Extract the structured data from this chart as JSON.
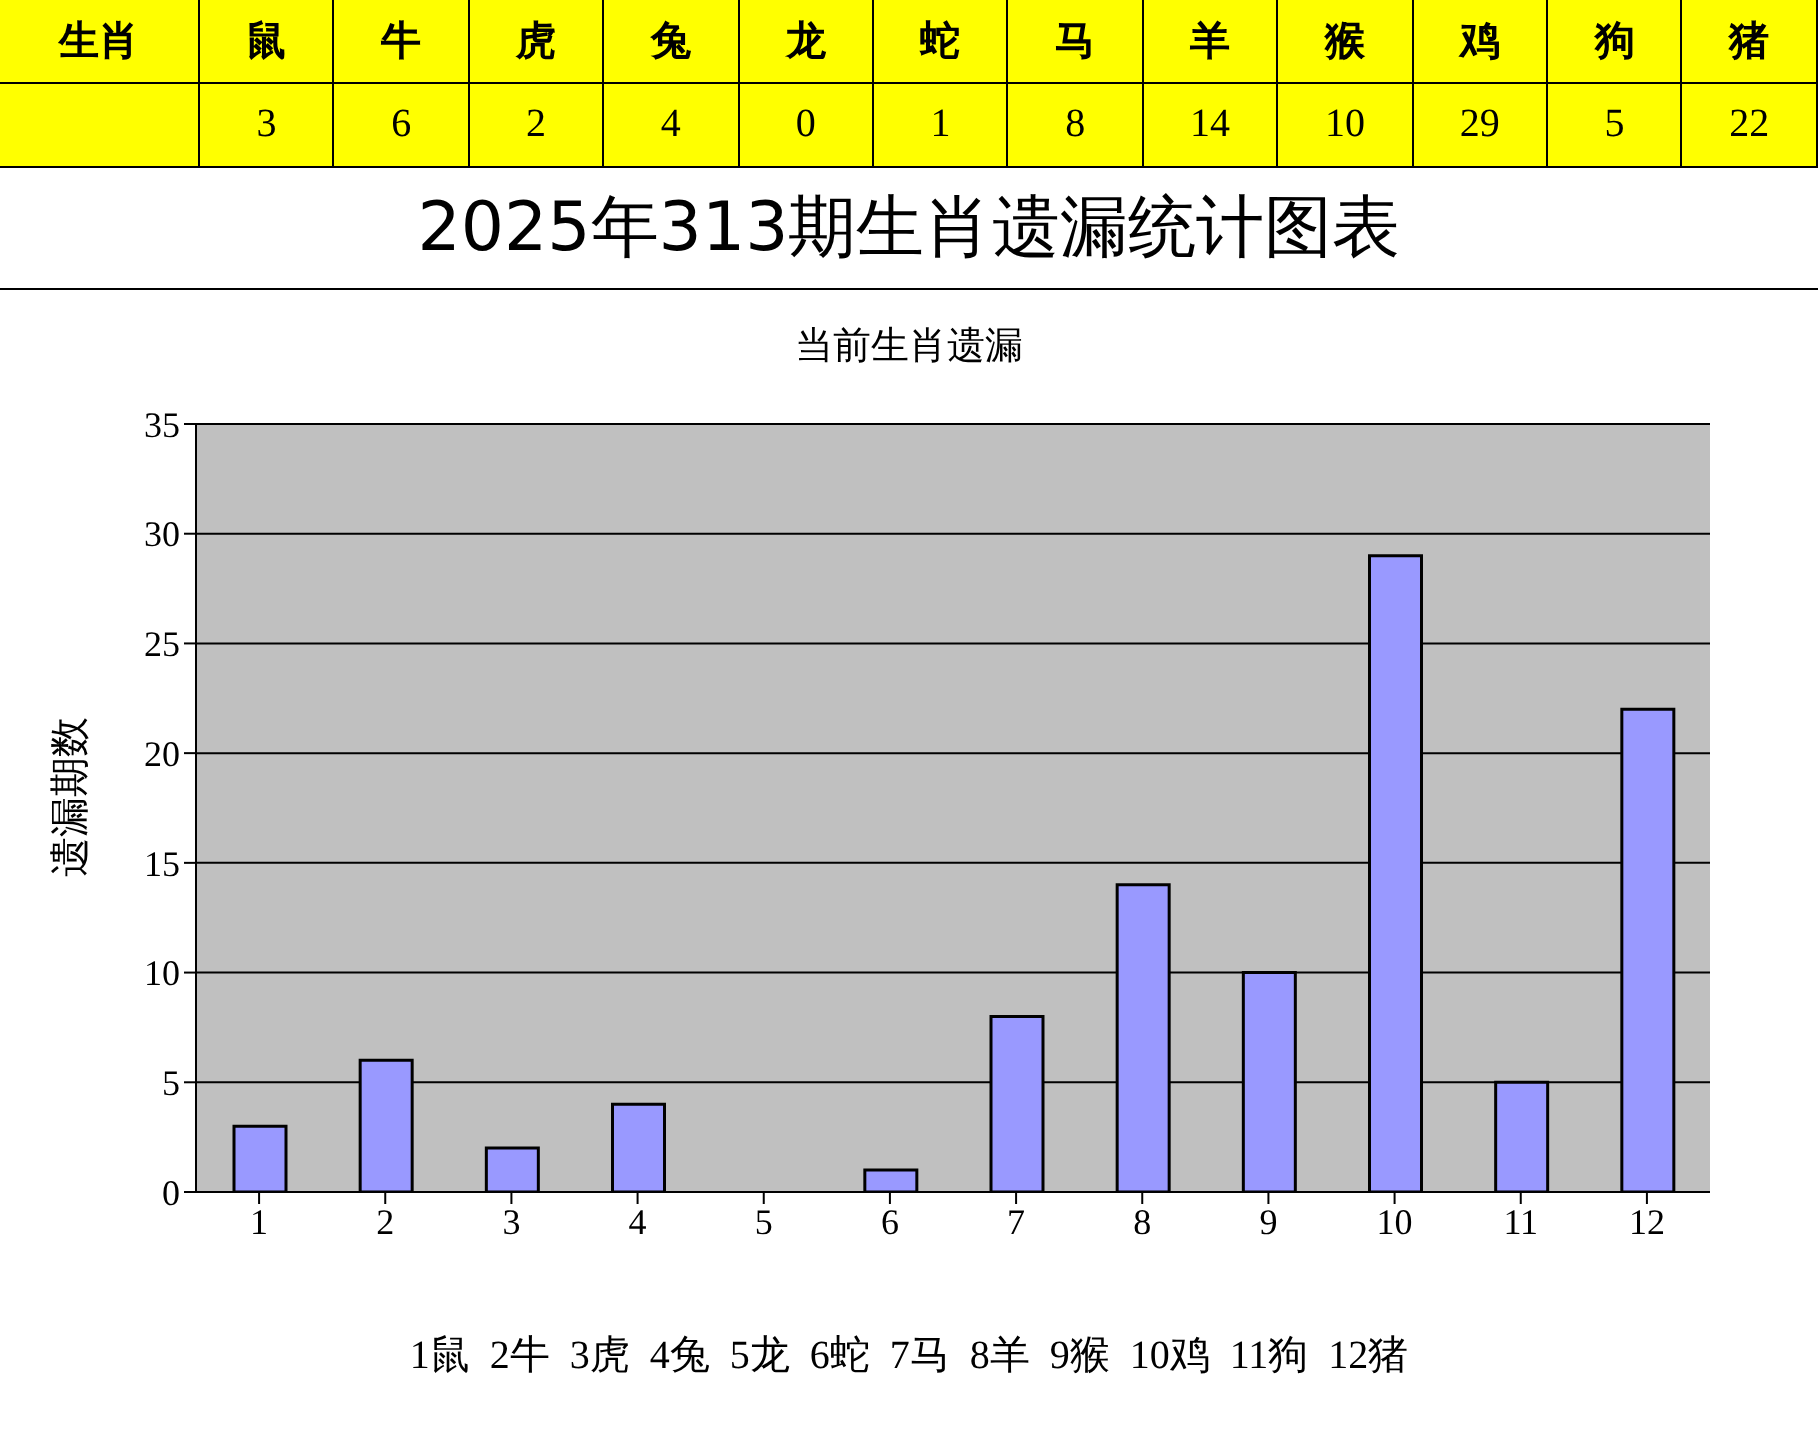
{
  "chart_data": {
    "type": "bar",
    "title": "2025年313期生肖遗漏统计图表",
    "subtitle": "当前生肖遗漏",
    "ylabel": "遗漏期数",
    "x": [
      1,
      2,
      3,
      4,
      5,
      6,
      7,
      8,
      9,
      10,
      11,
      12
    ],
    "xlim": [
      0.5,
      12.5
    ],
    "xticks": [
      1,
      2,
      3,
      4,
      5,
      6,
      7,
      8,
      9,
      10,
      11,
      12
    ],
    "values": [
      3,
      6,
      2,
      4,
      0,
      1,
      8,
      14,
      10,
      29,
      5,
      22
    ],
    "color": "#9999ff",
    "ylim": [
      0,
      35
    ],
    "yticks": [
      0,
      5,
      10,
      15,
      20,
      25,
      30,
      35
    ],
    "grid": "y",
    "annotations": [
      "生肖",
      "鼠",
      "牛",
      "虎",
      "兔",
      "龙",
      "蛇",
      "马",
      "羊",
      "猴",
      "鸡",
      "狗",
      "猪",
      "3",
      "6",
      "2",
      "4",
      "0",
      "1",
      "8",
      "14",
      "10",
      "29",
      "5",
      "22",
      "1鼠  2牛  3虎  4兔  5龙  6蛇  7马  8羊  9猴  10鸡  11狗  12猪"
    ]
  }
}
